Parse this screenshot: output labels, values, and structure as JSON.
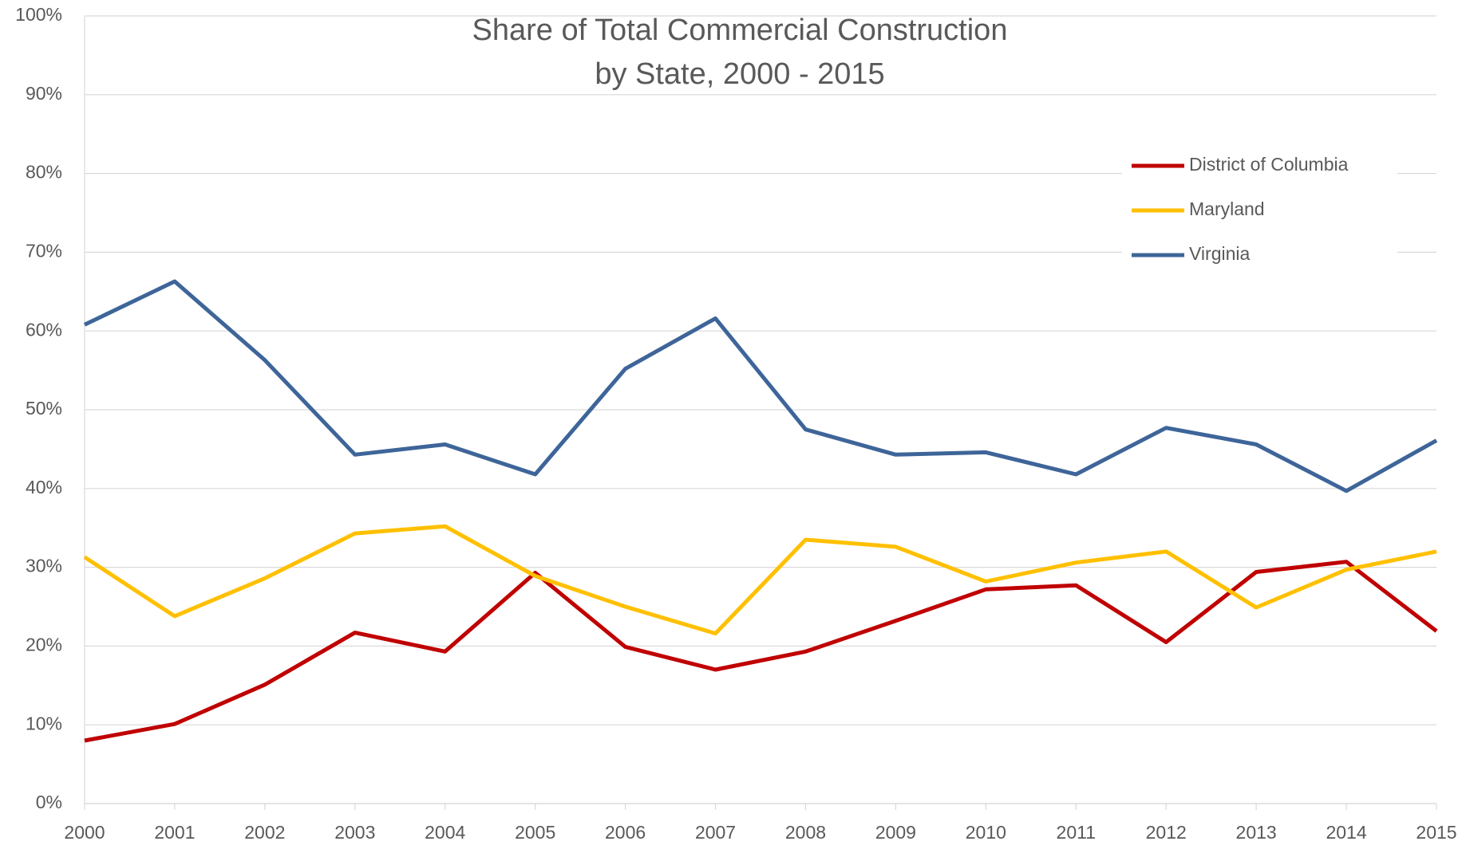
{
  "chart_data": {
    "type": "line",
    "title": [
      "Share of Total Commercial Construction",
      "by State, 2000 - 2015"
    ],
    "x": [
      2000,
      2001,
      2002,
      2003,
      2004,
      2005,
      2006,
      2007,
      2008,
      2009,
      2010,
      2011,
      2012,
      2013,
      2014,
      2015
    ],
    "series": [
      {
        "name": "District of Columbia",
        "color": "#c00000",
        "values": [
          8.0,
          10.1,
          15.1,
          21.7,
          19.3,
          29.3,
          19.9,
          17.0,
          19.3,
          23.2,
          27.2,
          27.7,
          20.5,
          29.4,
          30.7,
          21.9
        ]
      },
      {
        "name": "Maryland",
        "color": "#ffc000",
        "values": [
          31.3,
          23.8,
          28.6,
          34.3,
          35.2,
          28.9,
          25.0,
          21.6,
          33.5,
          32.6,
          28.2,
          30.6,
          32.0,
          24.9,
          29.7,
          32.0
        ]
      },
      {
        "name": "Virginia",
        "color": "#3e6599",
        "values": [
          60.8,
          66.3,
          56.3,
          44.3,
          45.6,
          41.8,
          55.2,
          61.6,
          47.5,
          44.3,
          44.6,
          41.8,
          47.7,
          45.6,
          39.7,
          46.1
        ]
      }
    ],
    "xlim": [
      2000,
      2015
    ],
    "xticks": [
      2000,
      2001,
      2002,
      2003,
      2004,
      2005,
      2006,
      2007,
      2008,
      2009,
      2010,
      2011,
      2012,
      2013,
      2014,
      2015
    ],
    "ylim": [
      0,
      100
    ],
    "yticks": [
      {
        "value": 0,
        "label": "0%"
      },
      {
        "value": 10,
        "label": "10%"
      },
      {
        "value": 20,
        "label": "20%"
      },
      {
        "value": 30,
        "label": "30%"
      },
      {
        "value": 40,
        "label": "40%"
      },
      {
        "value": 50,
        "label": "50%"
      },
      {
        "value": 60,
        "label": "60%"
      },
      {
        "value": 70,
        "label": "70%"
      },
      {
        "value": 80,
        "label": "80%"
      },
      {
        "value": 90,
        "label": "90%"
      },
      {
        "value": 100,
        "label": "100%"
      }
    ],
    "grid": true,
    "legend": "upper right"
  }
}
